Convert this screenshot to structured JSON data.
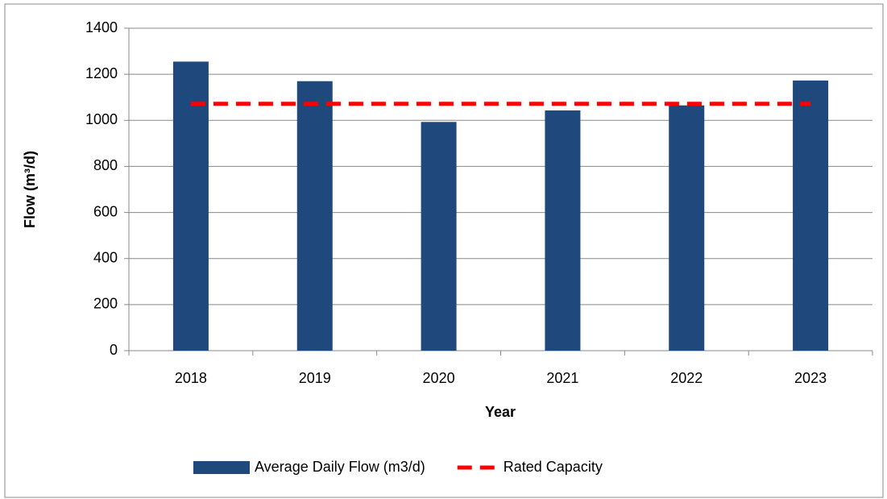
{
  "chart_data": {
    "type": "bar",
    "x_label": "Year",
    "y_label": "Flow (m³/d)",
    "categories": [
      "2018",
      "2019",
      "2020",
      "2021",
      "2022",
      "2023"
    ],
    "series": [
      {
        "name": "Average Daily Flow (m3/d)",
        "type": "bar",
        "color": "#1f497d",
        "values": [
          1255,
          1170,
          993,
          1043,
          1065,
          1173
        ]
      },
      {
        "name": "Rated Capacity",
        "type": "line",
        "color": "#ff0000",
        "dashed": true,
        "values": [
          1072,
          1072,
          1072,
          1072,
          1072,
          1072
        ]
      }
    ],
    "ylim": [
      0,
      1400
    ],
    "yticks": [
      0,
      200,
      400,
      600,
      800,
      1000,
      1200,
      1400
    ],
    "grid": true,
    "legend": "bottom"
  }
}
